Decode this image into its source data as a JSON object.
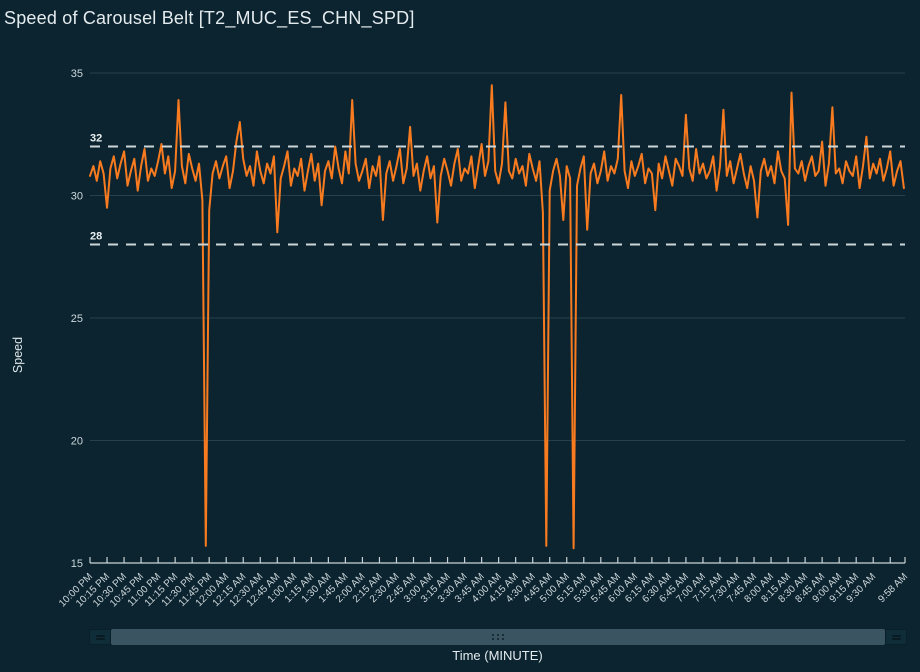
{
  "header": {
    "title": "Speed of Carousel Belt [T2_MUC_ES_CHN_SPD]"
  },
  "colors": {
    "background": "#0c2430",
    "line": "#f87b1f",
    "grid": "#24414d",
    "axis_line": "#c7d3d6",
    "axis_text": "#ccd7db",
    "threshold_line": "#ccd6d9",
    "threshold_text": "#e8eff1",
    "title_text": "#e4ebee",
    "scrollbar_track": "#3a5461",
    "scrollbar_button": "#0f2d39"
  },
  "chart_data": {
    "type": "line",
    "title": "Speed of Carousel Belt [T2_MUC_ES_CHN_SPD]",
    "xlabel": "Time (MINUTE)",
    "ylabel": "Speed",
    "ylim": [
      15,
      35
    ],
    "y_ticks": [
      35,
      30,
      25,
      20,
      15
    ],
    "grid": "horizontal-only",
    "legend": "none",
    "series_name": "T2_MUC_ES_CHN_SPD",
    "threshold_lines": [
      {
        "value": 32,
        "label": "32",
        "style": "dashed"
      },
      {
        "value": 28,
        "label": "28",
        "style": "dashed"
      }
    ],
    "x_start_label": "10:00 PM",
    "x_end_label": "9:58 AM",
    "x_total_minutes": 718,
    "x_tick_interval_minutes": 15,
    "x_tick_labels": [
      "10:00 PM",
      "10:15 PM",
      "10:30 PM",
      "10:45 PM",
      "11:00 PM",
      "11:15 PM",
      "11:30 PM",
      "11:45 PM",
      "12:00 AM",
      "12:15 AM",
      "12:30 AM",
      "12:45 AM",
      "1:00 AM",
      "1:15 AM",
      "1:30 AM",
      "1:45 AM",
      "2:00 AM",
      "2:15 AM",
      "2:30 AM",
      "2:45 AM",
      "3:00 AM",
      "3:15 AM",
      "3:30 AM",
      "3:45 AM",
      "4:00 AM",
      "4:15 AM",
      "4:30 AM",
      "4:45 AM",
      "5:00 AM",
      "5:15 AM",
      "5:30 AM",
      "5:45 AM",
      "6:00 AM",
      "6:15 AM",
      "6:30 AM",
      "6:45 AM",
      "7:00 AM",
      "7:15 AM",
      "7:30 AM",
      "7:45 AM",
      "8:00 AM",
      "8:15 AM",
      "8:30 AM",
      "8:45 AM",
      "9:00 AM",
      "9:15 AM",
      "9:30 AM",
      "",
      "9:58 AM"
    ],
    "sample_step_minutes": 3,
    "values": [
      30.8,
      31.2,
      30.6,
      31.4,
      30.9,
      29.5,
      31.1,
      31.6,
      30.7,
      31.3,
      31.8,
      30.4,
      31.0,
      31.5,
      30.2,
      31.2,
      31.9,
      30.6,
      31.1,
      30.8,
      31.4,
      32.1,
      30.9,
      31.6,
      30.3,
      31.0,
      33.9,
      31.2,
      30.5,
      31.7,
      31.1,
      30.6,
      31.3,
      29.8,
      15.7,
      29.4,
      30.9,
      31.4,
      30.7,
      31.2,
      31.6,
      30.3,
      31.0,
      32.2,
      33.0,
      31.5,
      30.8,
      31.2,
      30.4,
      31.8,
      31.0,
      30.5,
      31.3,
      30.9,
      31.6,
      28.5,
      30.7,
      31.2,
      31.8,
      30.4,
      31.1,
      30.8,
      31.5,
      30.2,
      31.0,
      31.7,
      30.6,
      31.3,
      29.6,
      31.0,
      31.4,
      30.7,
      32.0,
      31.1,
      30.5,
      31.8,
      30.9,
      33.9,
      31.3,
      30.6,
      31.0,
      31.5,
      30.3,
      31.2,
      30.8,
      31.6,
      29.0,
      30.9,
      31.4,
      30.6,
      31.2,
      31.9,
      30.5,
      31.1,
      32.8,
      30.8,
      31.3,
      30.2,
      31.0,
      31.6,
      30.7,
      31.2,
      28.9,
      30.8,
      31.5,
      31.0,
      30.4,
      31.3,
      31.9,
      30.6,
      31.1,
      30.9,
      31.6,
      30.3,
      31.2,
      32.1,
      30.8,
      31.4,
      34.5,
      31.0,
      30.5,
      31.3,
      33.8,
      31.0,
      30.7,
      31.5,
      30.9,
      31.2,
      30.4,
      31.7,
      31.1,
      30.6,
      31.4,
      29.3,
      15.7,
      30.2,
      31.0,
      31.5,
      30.8,
      29.0,
      31.2,
      30.7,
      15.6,
      30.4,
      31.1,
      31.6,
      28.6,
      30.9,
      31.3,
      30.5,
      31.0,
      31.8,
      30.6,
      31.2,
      30.9,
      31.5,
      34.1,
      31.0,
      30.3,
      31.4,
      30.8,
      31.2,
      31.7,
      30.5,
      31.1,
      30.9,
      29.4,
      31.3,
      30.7,
      31.6,
      31.0,
      30.4,
      31.5,
      31.2,
      30.8,
      33.3,
      31.1,
      30.6,
      31.9,
      30.9,
      31.3,
      30.7,
      31.0,
      31.6,
      30.2,
      31.2,
      33.5,
      30.8,
      31.4,
      30.5,
      31.1,
      31.7,
      30.9,
      30.3,
      31.2,
      30.6,
      29.1,
      31.0,
      31.5,
      30.8,
      31.2,
      30.5,
      31.8,
      31.0,
      30.7,
      28.8,
      34.2,
      31.1,
      30.9,
      31.4,
      30.6,
      31.2,
      31.6,
      30.8,
      31.0,
      32.2,
      30.4,
      31.3,
      33.6,
      30.9,
      31.1,
      30.5,
      31.4,
      31.0,
      30.8,
      31.6,
      30.3,
      31.2,
      32.4,
      30.7,
      31.3,
      30.9,
      31.5,
      30.6,
      31.1,
      31.8,
      30.4,
      31.0,
      31.4,
      30.3
    ]
  },
  "scrollbar": {
    "left_button_icon": "drag-handle-icon",
    "right_button_icon": "drag-handle-icon",
    "grip_icon": "grip-dots-icon"
  }
}
